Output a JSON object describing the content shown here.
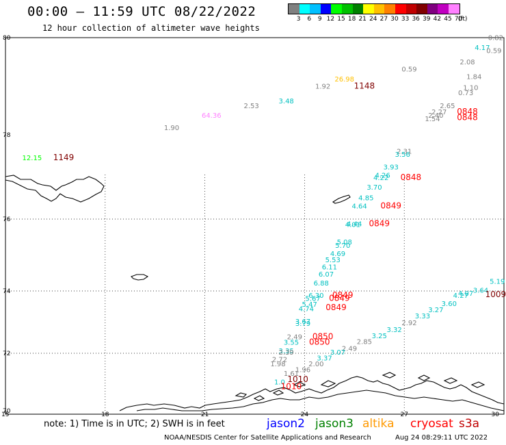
{
  "header": {
    "title": "00:00 – 11:59 UTC 08/22/2022",
    "subtitle": "12 hour collection of altimeter wave heights"
  },
  "color_scale": {
    "unit": "(ft)",
    "bins": [
      {
        "label": "3",
        "color": "#808080"
      },
      {
        "label": "6",
        "color": "#00ffff"
      },
      {
        "label": "9",
        "color": "#00c0ff"
      },
      {
        "label": "12",
        "color": "#0000ff"
      },
      {
        "label": "15",
        "color": "#00ff00"
      },
      {
        "label": "18",
        "color": "#00c000"
      },
      {
        "label": "21",
        "color": "#008000"
      },
      {
        "label": "24",
        "color": "#ffff00"
      },
      {
        "label": "27",
        "color": "#ffc000"
      },
      {
        "label": "30",
        "color": "#ff8000"
      },
      {
        "label": "33",
        "color": "#ff0000"
      },
      {
        "label": "36",
        "color": "#c00000"
      },
      {
        "label": "39",
        "color": "#800000"
      },
      {
        "label": "42",
        "color": "#800080"
      },
      {
        "label": "45",
        "color": "#c000c0"
      },
      {
        "label": "70",
        "color": "#ff80ff"
      }
    ]
  },
  "map": {
    "lat_labels": [
      "80",
      "78",
      "76",
      "74",
      "72",
      "70"
    ],
    "lon_labels": [
      "15",
      "18",
      "21",
      "24",
      "27",
      "30"
    ]
  },
  "observations": [
    {
      "text": "0.82",
      "color": "#808080",
      "lon": 29.75,
      "lat": 79.95
    },
    {
      "text": "4.17",
      "color": "#00c0c0",
      "lon": 29.35,
      "lat": 79.75
    },
    {
      "text": "0.59",
      "color": "#808080",
      "lon": 29.7,
      "lat": 79.68
    },
    {
      "text": "2.08",
      "color": "#808080",
      "lon": 28.9,
      "lat": 79.45
    },
    {
      "text": "0.59",
      "color": "#808080",
      "lon": 27.15,
      "lat": 79.3
    },
    {
      "text": "1.84",
      "color": "#808080",
      "lon": 29.1,
      "lat": 79.15
    },
    {
      "text": "26.98",
      "color": "#ffc000",
      "lon": 25.2,
      "lat": 79.1
    },
    {
      "text": "1.92",
      "color": "#808080",
      "lon": 24.55,
      "lat": 78.95
    },
    {
      "text": "1148",
      "color": "#800000",
      "lon": 25.8,
      "lat": 78.95
    },
    {
      "text": "1.10",
      "color": "#808080",
      "lon": 29.0,
      "lat": 78.92
    },
    {
      "text": "0.73",
      "color": "#808080",
      "lon": 28.85,
      "lat": 78.82
    },
    {
      "text": "3.48",
      "color": "#00c0c0",
      "lon": 23.45,
      "lat": 78.65
    },
    {
      "text": "2.53",
      "color": "#808080",
      "lon": 22.4,
      "lat": 78.55
    },
    {
      "text": "2.65",
      "color": "#808080",
      "lon": 28.3,
      "lat": 78.55
    },
    {
      "text": "2.27",
      "color": "#808080",
      "lon": 28.05,
      "lat": 78.42
    },
    {
      "text": "0848",
      "color": "#ff0000",
      "lon": 28.9,
      "lat": 78.42
    },
    {
      "text": "64.36",
      "color": "#ff80ff",
      "lon": 21.2,
      "lat": 78.35
    },
    {
      "text": "2.40",
      "color": "#808080",
      "lon": 27.95,
      "lat": 78.35
    },
    {
      "text": "1.54",
      "color": "#808080",
      "lon": 27.85,
      "lat": 78.28
    },
    {
      "text": "0848",
      "color": "#ff0000",
      "lon": 28.9,
      "lat": 78.3
    },
    {
      "text": "1.90",
      "color": "#808080",
      "lon": 20.0,
      "lat": 78.1
    },
    {
      "text": "2.31",
      "color": "#808080",
      "lon": 27.0,
      "lat": 77.55
    },
    {
      "text": "3.56",
      "color": "#00c0c0",
      "lon": 26.95,
      "lat": 77.48
    },
    {
      "text": "12.15",
      "color": "#00ff00",
      "lon": 15.8,
      "lat": 77.4
    },
    {
      "text": "1149",
      "color": "#800000",
      "lon": 16.75,
      "lat": 77.4
    },
    {
      "text": "3.93",
      "color": "#00c0c0",
      "lon": 26.6,
      "lat": 77.18
    },
    {
      "text": "4.26",
      "color": "#00c0c0",
      "lon": 26.35,
      "lat": 76.98
    },
    {
      "text": "4.22",
      "color": "#00c0c0",
      "lon": 26.3,
      "lat": 76.93
    },
    {
      "text": "0848",
      "color": "#ff0000",
      "lon": 27.2,
      "lat": 76.93
    },
    {
      "text": "3.70",
      "color": "#00c0c0",
      "lon": 26.1,
      "lat": 76.7
    },
    {
      "text": "4.85",
      "color": "#00c0c0",
      "lon": 25.85,
      "lat": 76.45
    },
    {
      "text": "4.64",
      "color": "#00c0c0",
      "lon": 25.65,
      "lat": 76.25
    },
    {
      "text": "0849",
      "color": "#ff0000",
      "lon": 26.6,
      "lat": 76.25
    },
    {
      "text": "4.44",
      "color": "#00c0c0",
      "lon": 25.5,
      "lat": 75.8
    },
    {
      "text": "4.01",
      "color": "#00c0c0",
      "lon": 25.45,
      "lat": 75.78
    },
    {
      "text": "0849",
      "color": "#ff0000",
      "lon": 26.25,
      "lat": 75.8
    },
    {
      "text": "5.08",
      "color": "#00c0c0",
      "lon": 25.2,
      "lat": 75.3
    },
    {
      "text": "5.70",
      "color": "#00c0c0",
      "lon": 25.15,
      "lat": 75.2
    },
    {
      "text": "4.69",
      "color": "#00c0c0",
      "lon": 25.0,
      "lat": 74.97
    },
    {
      "text": "5.53",
      "color": "#00c0c0",
      "lon": 24.85,
      "lat": 74.8
    },
    {
      "text": "6.11",
      "color": "#00c0c0",
      "lon": 24.75,
      "lat": 74.6
    },
    {
      "text": "6.07",
      "color": "#00c0c0",
      "lon": 24.65,
      "lat": 74.4
    },
    {
      "text": "6.88",
      "color": "#00c0c0",
      "lon": 24.5,
      "lat": 74.15
    },
    {
      "text": "6.30",
      "color": "#00c0c0",
      "lon": 24.35,
      "lat": 73.78
    },
    {
      "text": "0849",
      "color": "#ff0000",
      "lon": 25.15,
      "lat": 73.78
    },
    {
      "text": "5.67",
      "color": "#00c0c0",
      "lon": 24.25,
      "lat": 73.68
    },
    {
      "text": "0849",
      "color": "#ff0000",
      "lon": 25.05,
      "lat": 73.68
    },
    {
      "text": "5.47",
      "color": "#00c0c0",
      "lon": 24.15,
      "lat": 73.5
    },
    {
      "text": "4.74",
      "color": "#00c0c0",
      "lon": 24.05,
      "lat": 73.35
    },
    {
      "text": "0849",
      "color": "#ff0000",
      "lon": 24.95,
      "lat": 73.38
    },
    {
      "text": "3.67",
      "color": "#00c0c0",
      "lon": 23.95,
      "lat": 72.95
    },
    {
      "text": "3.79",
      "color": "#00c0c0",
      "lon": 23.95,
      "lat": 72.88
    },
    {
      "text": "2.49",
      "color": "#808080",
      "lon": 23.7,
      "lat": 72.45
    },
    {
      "text": "0850",
      "color": "#ff0000",
      "lon": 24.55,
      "lat": 72.45
    },
    {
      "text": "3.55",
      "color": "#00c0c0",
      "lon": 23.6,
      "lat": 72.27
    },
    {
      "text": "0850",
      "color": "#ff0000",
      "lon": 24.45,
      "lat": 72.27
    },
    {
      "text": "3.35",
      "color": "#00c0c0",
      "lon": 23.45,
      "lat": 72.0
    },
    {
      "text": "2.39",
      "color": "#808080",
      "lon": 23.45,
      "lat": 71.95
    },
    {
      "text": "2.72",
      "color": "#808080",
      "lon": 23.25,
      "lat": 71.7
    },
    {
      "text": "1.98",
      "color": "#808080",
      "lon": 23.2,
      "lat": 71.55
    },
    {
      "text": "2.00",
      "color": "#808080",
      "lon": 24.35,
      "lat": 71.55
    },
    {
      "text": "1.96",
      "color": "#808080",
      "lon": 23.95,
      "lat": 71.35
    },
    {
      "text": "1.61",
      "color": "#808080",
      "lon": 23.6,
      "lat": 71.22
    },
    {
      "text": "1010",
      "color": "#800000",
      "lon": 23.8,
      "lat": 71.0
    },
    {
      "text": "1.0",
      "color": "#00c0c0",
      "lon": 23.25,
      "lat": 70.92
    },
    {
      "text": "1010",
      "color": "#ff0000",
      "lon": 23.6,
      "lat": 70.75
    },
    {
      "text": "5.19",
      "color": "#00c0c0",
      "lon": 29.8,
      "lat": 74.2
    },
    {
      "text": "3.64",
      "color": "#00c0c0",
      "lon": 29.3,
      "lat": 73.95
    },
    {
      "text": "1009",
      "color": "#800000",
      "lon": 29.75,
      "lat": 73.8
    },
    {
      "text": "4.07",
      "color": "#00c0c0",
      "lon": 28.85,
      "lat": 73.85
    },
    {
      "text": "4.27",
      "color": "#00c0c0",
      "lon": 28.7,
      "lat": 73.78
    },
    {
      "text": "3.60",
      "color": "#00c0c0",
      "lon": 28.35,
      "lat": 73.52
    },
    {
      "text": "3.27",
      "color": "#00c0c0",
      "lon": 27.95,
      "lat": 73.32
    },
    {
      "text": "3.33",
      "color": "#00c0c0",
      "lon": 27.55,
      "lat": 73.12
    },
    {
      "text": "2.92",
      "color": "#808080",
      "lon": 27.15,
      "lat": 72.9
    },
    {
      "text": "3.32",
      "color": "#00c0c0",
      "lon": 26.7,
      "lat": 72.68
    },
    {
      "text": "3.25",
      "color": "#00c0c0",
      "lon": 26.25,
      "lat": 72.48
    },
    {
      "text": "2.85",
      "color": "#808080",
      "lon": 25.8,
      "lat": 72.3
    },
    {
      "text": "2.49",
      "color": "#808080",
      "lon": 25.35,
      "lat": 72.08
    },
    {
      "text": "3.07",
      "color": "#00c0c0",
      "lon": 25.0,
      "lat": 71.95
    },
    {
      "text": "3.37",
      "color": "#00c0c0",
      "lon": 24.6,
      "lat": 71.75
    }
  ],
  "footer": {
    "note": "note: 1) Time is in UTC; 2) SWH is in feet",
    "satellites": [
      {
        "name": "jason2",
        "color": "#0000ff"
      },
      {
        "name": "jason3",
        "color": "#008000"
      },
      {
        "name": "altika",
        "color": "#ff9900"
      },
      {
        "name": "cryosat",
        "color": "#ff0000"
      },
      {
        "name": "s3a",
        "color": "#c00000"
      }
    ],
    "credit": "NOAA/NESDIS Center for Satellite Applications and Research",
    "timestamp": "Aug 24 08:29:11 UTC 2022"
  }
}
